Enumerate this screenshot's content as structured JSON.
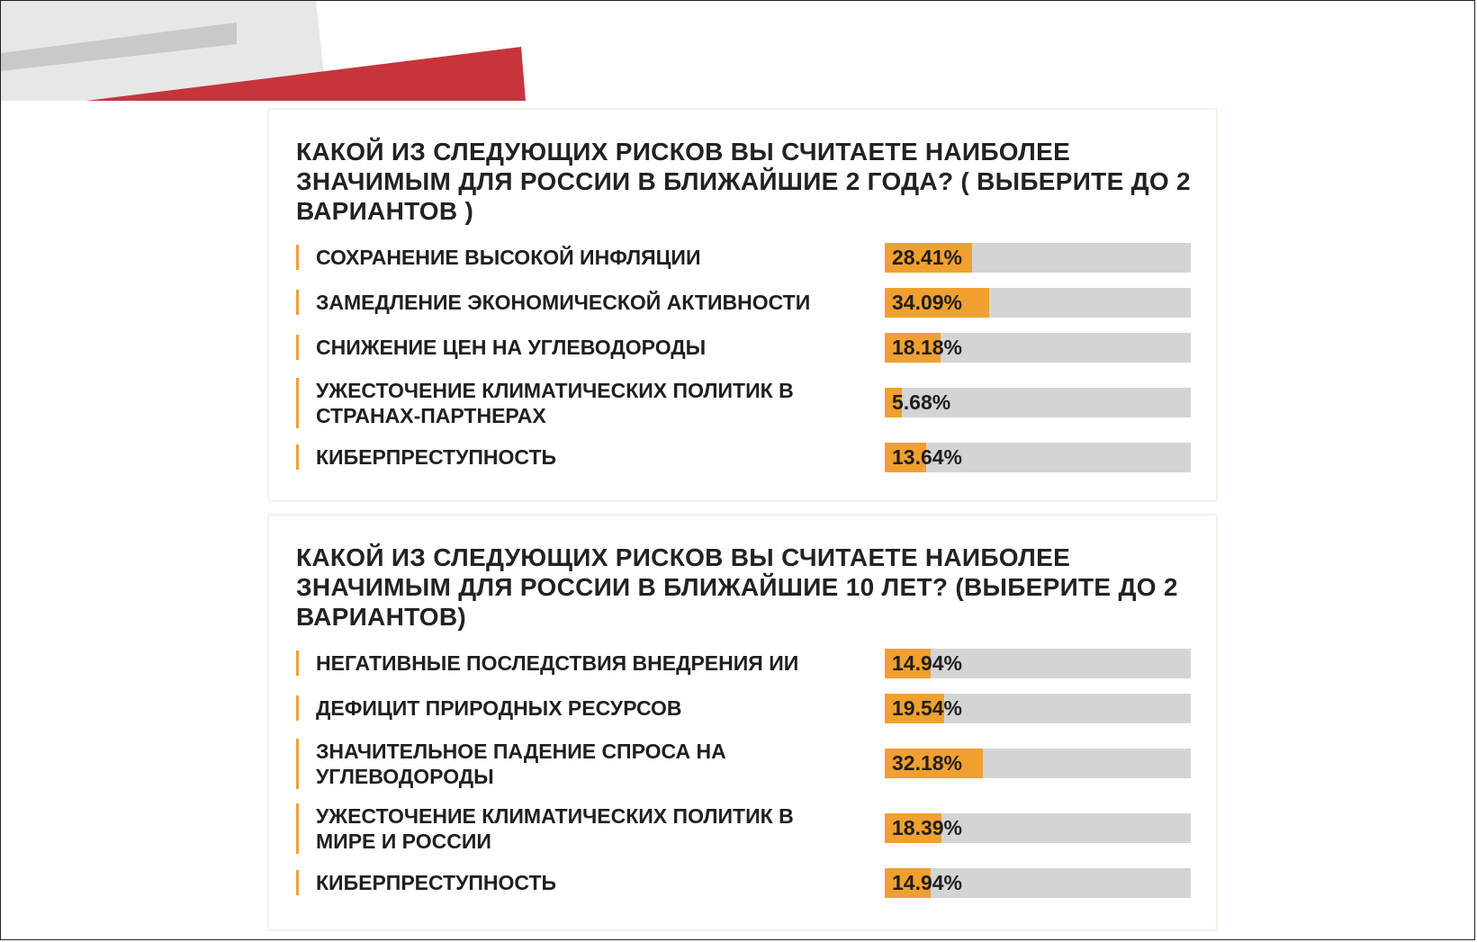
{
  "colors": {
    "accent": "#f0a030",
    "track": "#d4d4d4",
    "deco_red": "#c8343c",
    "deco_gray": "#e7e7e7"
  },
  "chart_data": [
    {
      "type": "bar",
      "title": "КАКОЙ ИЗ СЛЕДУЮЩИХ РИСКОВ ВЫ СЧИТАЕТЕ НАИБОЛЕЕ ЗНАЧИМЫМ ДЛЯ РОССИИ В БЛИЖАЙШИЕ 2 ГОДА? ( ВЫБЕРИТЕ ДО 2 ВАРИАНТОВ )",
      "unit": "%",
      "ylim": [
        0,
        100
      ],
      "categories": [
        "СОХРАНЕНИЕ ВЫСОКОЙ ИНФЛЯЦИИ",
        "ЗАМЕДЛЕНИЕ ЭКОНОМИЧЕСКОЙ АКТИВНОСТИ",
        "СНИЖЕНИЕ ЦЕН НА УГЛЕВОДОРОДЫ",
        "УЖЕСТОЧЕНИЕ КЛИМАТИЧЕСКИХ ПОЛИТИК В СТРАНАХ-ПАРТНЕРАХ",
        "КИБЕРПРЕСТУПНОСТЬ"
      ],
      "values": [
        28.41,
        34.09,
        18.18,
        5.68,
        13.64
      ],
      "labels": [
        "28.41%",
        "34.09%",
        "18.18%",
        "5.68%",
        "13.64%"
      ]
    },
    {
      "type": "bar",
      "title": "КАКОЙ ИЗ СЛЕДУЮЩИХ РИСКОВ ВЫ СЧИТАЕТЕ НАИБОЛЕЕ ЗНАЧИМЫМ ДЛЯ РОССИИ В БЛИЖАЙШИЕ 10 ЛЕТ? (ВЫБЕРИТЕ ДО 2 ВАРИАНТОВ)",
      "unit": "%",
      "ylim": [
        0,
        100
      ],
      "categories": [
        "НЕГАТИВНЫЕ ПОСЛЕДСТВИЯ ВНЕДРЕНИЯ ИИ",
        "ДЕФИЦИТ ПРИРОДНЫХ РЕСУРСОВ",
        "ЗНАЧИТЕЛЬНОЕ ПАДЕНИЕ СПРОСА НА УГЛЕВОДОРОДЫ",
        "УЖЕСТОЧЕНИЕ КЛИМАТИЧЕСКИХ ПОЛИТИК В МИРЕ И РОССИИ",
        "КИБЕРПРЕСТУПНОСТЬ"
      ],
      "values": [
        14.94,
        19.54,
        32.18,
        18.39,
        14.94
      ],
      "labels": [
        "14.94%",
        "19.54%",
        "32.18%",
        "18.39%",
        "14.94%"
      ]
    }
  ]
}
